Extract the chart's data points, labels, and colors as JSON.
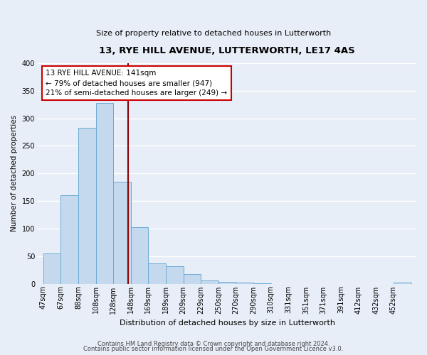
{
  "title": "13, RYE HILL AVENUE, LUTTERWORTH, LE17 4AS",
  "subtitle": "Size of property relative to detached houses in Lutterworth",
  "xlabel": "Distribution of detached houses by size in Lutterworth",
  "ylabel": "Number of detached properties",
  "bin_labels": [
    "47sqm",
    "67sqm",
    "88sqm",
    "108sqm",
    "128sqm",
    "148sqm",
    "169sqm",
    "189sqm",
    "209sqm",
    "229sqm",
    "250sqm",
    "270sqm",
    "290sqm",
    "310sqm",
    "331sqm",
    "351sqm",
    "371sqm",
    "391sqm",
    "412sqm",
    "432sqm",
    "452sqm"
  ],
  "bar_values": [
    55,
    160,
    283,
    328,
    185,
    103,
    37,
    32,
    18,
    6,
    3,
    2,
    1,
    0,
    0,
    0,
    0,
    0,
    0,
    0,
    2
  ],
  "bar_color": "#c5d9ee",
  "bar_edge_color": "#6aaad4",
  "vline_x_index": 4.85,
  "vline_color": "#8b0000",
  "annotation_line1": "13 RYE HILL AVENUE: 141sqm",
  "annotation_line2": "← 79% of detached houses are smaller (947)",
  "annotation_line3": "21% of semi-detached houses are larger (249) →",
  "annotation_box_color": "#ffffff",
  "annotation_box_edge_color": "#cc0000",
  "ylim": [
    0,
    400
  ],
  "yticks": [
    0,
    50,
    100,
    150,
    200,
    250,
    300,
    350,
    400
  ],
  "footer_line1": "Contains HM Land Registry data © Crown copyright and database right 2024.",
  "footer_line2": "Contains public sector information licensed under the Open Government Licence v3.0.",
  "bg_color": "#e8eef7",
  "grid_color": "#ffffff",
  "title_fontsize": 9.5,
  "subtitle_fontsize": 8,
  "xlabel_fontsize": 8,
  "ylabel_fontsize": 7.5,
  "tick_fontsize": 7,
  "annot_fontsize": 7.5
}
